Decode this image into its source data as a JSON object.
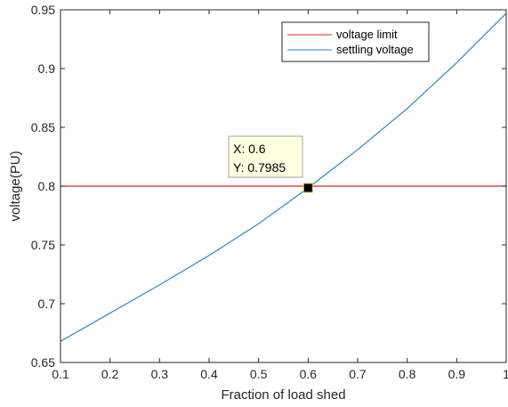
{
  "chart_data": {
    "type": "line",
    "xlabel": "Fraction of load shed",
    "ylabel": "voltage(PU)",
    "xlim": [
      0.1,
      1
    ],
    "ylim": [
      0.65,
      0.95
    ],
    "xticks": [
      "0.1",
      "0.2",
      "0.3",
      "0.4",
      "0.5",
      "0.6",
      "0.7",
      "0.8",
      "0.9",
      "1"
    ],
    "yticks": [
      "0.65",
      "0.7",
      "0.75",
      "0.8",
      "0.85",
      "0.9",
      "0.95"
    ],
    "grid": false,
    "legend_position": "top-right",
    "series": [
      {
        "name": "voltage limit",
        "color": "#d62728",
        "x": [
          0.1,
          1
        ],
        "y": [
          0.8,
          0.8
        ]
      },
      {
        "name": "settling voltage",
        "color": "#2e86c1",
        "x": [
          0.1,
          0.2,
          0.3,
          0.4,
          0.5,
          0.6,
          0.7,
          0.8,
          0.9,
          1.0
        ],
        "y": [
          0.668,
          0.692,
          0.716,
          0.741,
          0.768,
          0.7985,
          0.831,
          0.866,
          0.905,
          0.947
        ]
      }
    ],
    "datatip": {
      "x": 0.6,
      "y": 0.7985,
      "x_text": "X: 0.6",
      "y_text": "Y: 0.7985"
    }
  }
}
